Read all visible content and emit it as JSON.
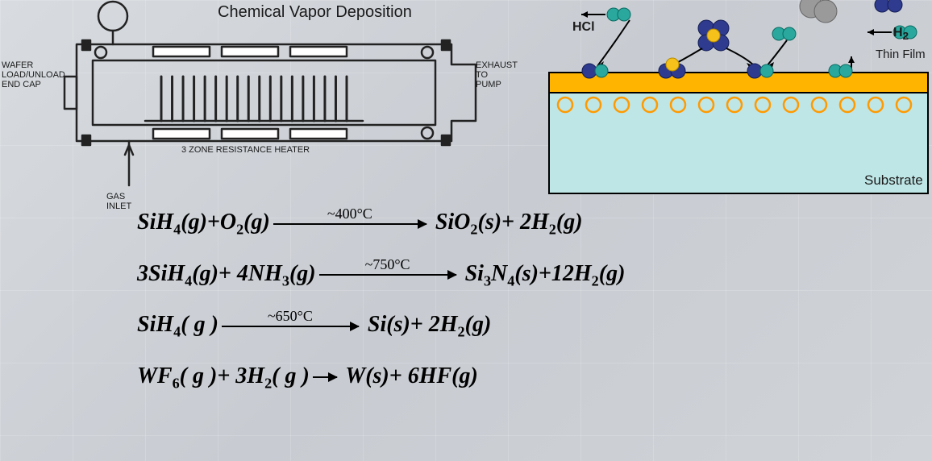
{
  "title": "Chemical Vapor Deposition",
  "apparatus": {
    "label_left": "WAFER\nLOAD/UNLOAD\nEND CAP",
    "label_right": "EXHAUST\nTO\nPUMP",
    "label_heater": "3 ZONE RESISTANCE HEATER",
    "label_gas": "GAS\nINLET",
    "stroke": "#222222",
    "wafer_count": 18
  },
  "film": {
    "label_hcl": "HCl",
    "label_h2": "H2",
    "label_thinfilm": "Thin Film",
    "label_substrate": "Substrate",
    "substrate_fill": "#bfe6e6",
    "film_fill": "#ffb400",
    "border": "#000000",
    "circle_stroke": "#ff9a00",
    "atom_teal": "#2aa89e",
    "atom_blue": "#2e3b8f",
    "atom_yellow": "#f5c11a",
    "atom_grey": "#9a9a9a",
    "open_circles": 13
  },
  "equations": [
    {
      "lhs": "SiH<sub>4</sub>(<i>g</i>)+O<sub>2</sub>(<i>g</i>)",
      "temp": "~400°C",
      "arrow_w": 190,
      "rhs": "SiO<sub>2</sub>(<i>s</i>)+ 2H<sub>2</sub>(<i>g</i>)"
    },
    {
      "lhs": "3SiH<sub>4</sub>(<i>g</i>)+ 4NH<sub>3</sub>(<i>g</i>)",
      "temp": "~750°C",
      "arrow_w": 170,
      "rhs": "Si<sub>3</sub>N<sub>4</sub>(<i>s</i>)+12H<sub>2</sub>(<i>g</i>)"
    },
    {
      "lhs": "SiH<sub>4</sub>(<i> g </i>)",
      "temp": "~650°C",
      "arrow_w": 170,
      "rhs": "Si(<i>s</i>)+ 2H<sub>2</sub>(<i>g</i>)"
    },
    {
      "lhs": "WF<sub>6</sub>(<i> g </i>)+ 3H<sub>2</sub>(<i> g </i>)",
      "temp": "",
      "arrow_w": 30,
      "rhs": "W(s)+ 6HF(g)"
    }
  ]
}
